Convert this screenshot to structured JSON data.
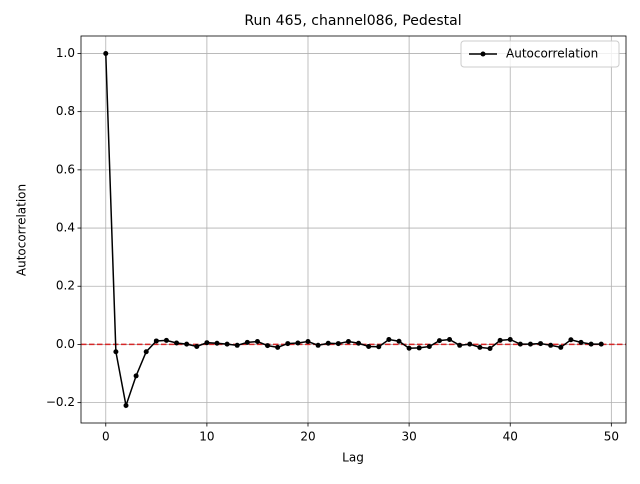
{
  "chart_data": {
    "type": "line",
    "title": "Run 465, channel086, Pedestal",
    "x_label": "Lag",
    "y_label": "Autocorrelation",
    "x": [
      0,
      1,
      2,
      3,
      4,
      5,
      6,
      7,
      8,
      9,
      10,
      11,
      12,
      13,
      14,
      15,
      16,
      17,
      18,
      19,
      20,
      21,
      22,
      23,
      24,
      25,
      26,
      27,
      28,
      29,
      30,
      31,
      32,
      33,
      34,
      35,
      36,
      37,
      38,
      39,
      40,
      41,
      42,
      43,
      44,
      45,
      46,
      47,
      48,
      49
    ],
    "series": [
      {
        "name": "Autocorrelation",
        "color": "#000000",
        "values": [
          1.0,
          -0.025,
          -0.21,
          -0.108,
          -0.025,
          0.012,
          0.014,
          0.005,
          0.001,
          -0.007,
          0.006,
          0.004,
          0.001,
          -0.003,
          0.007,
          0.01,
          -0.004,
          -0.01,
          0.003,
          0.005,
          0.01,
          -0.003,
          0.004,
          0.003,
          0.01,
          0.004,
          -0.007,
          -0.008,
          0.017,
          0.011,
          -0.013,
          -0.012,
          -0.007,
          0.013,
          0.017,
          -0.003,
          0.001,
          -0.01,
          -0.014,
          0.014,
          0.017,
          0.001,
          0.001,
          0.003,
          -0.003,
          -0.01,
          0.016,
          0.007,
          0.001,
          0.001
        ]
      }
    ],
    "reference_line": {
      "value": 0,
      "color": "#d62728"
    },
    "xlim": [
      -2.45,
      51.45
    ],
    "ylim": [
      -0.27,
      1.06
    ],
    "xticks": [
      0,
      10,
      20,
      30,
      40,
      50
    ],
    "yticks": [
      {
        "value": -0.2,
        "label": "−0.2"
      },
      {
        "value": 0,
        "label": "0.0"
      },
      {
        "value": 0.2,
        "label": "0.2"
      },
      {
        "value": 0.4,
        "label": "0.4"
      },
      {
        "value": 0.6,
        "label": "0.6"
      },
      {
        "value": 0.8,
        "label": "0.8"
      },
      {
        "value": 1.0,
        "label": "1.0"
      }
    ],
    "grid": true,
    "legend": "upper right"
  }
}
